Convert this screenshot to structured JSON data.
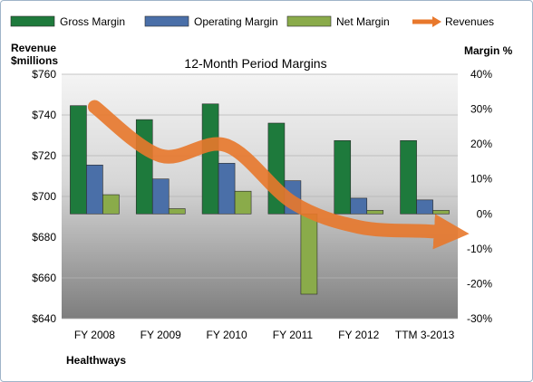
{
  "chart_data": {
    "type": "bar",
    "title": "12-Month Period Margins",
    "categories": [
      "FY 2008",
      "FY 2009",
      "FY 2010",
      "FY 2011",
      "FY 2012",
      "TTM 3-2013"
    ],
    "series": [
      {
        "name": "Gross Margin",
        "axis": "right",
        "color": "#1e7a3c",
        "values": [
          31,
          27,
          31.5,
          26,
          21,
          21
        ]
      },
      {
        "name": "Operating Margin",
        "axis": "right",
        "color": "#4a6fa8",
        "values": [
          14,
          10,
          14.5,
          9.5,
          4.5,
          4
        ]
      },
      {
        "name": "Net Margin",
        "axis": "right",
        "color": "#8aab4a",
        "values": [
          5.5,
          1.5,
          6.5,
          -23,
          1,
          1
        ]
      },
      {
        "name": "Revenues",
        "type": "line",
        "axis": "left",
        "color": "#e8782c",
        "values": [
          744,
          720,
          725,
          697,
          685,
          683
        ]
      }
    ],
    "left_axis": {
      "label_line1": "Revenue",
      "label_line2": "$millions",
      "min": 640,
      "max": 760,
      "ticks": [
        "$640",
        "$660",
        "$680",
        "$700",
        "$720",
        "$740",
        "$760"
      ]
    },
    "right_axis": {
      "label": "Margin %",
      "min": -30,
      "max": 40,
      "ticks": [
        "-30%",
        "-20%",
        "-10%",
        "0%",
        "10%",
        "20%",
        "30%",
        "40%"
      ]
    },
    "legend_position": "top",
    "grid": true,
    "source": "Healthways"
  }
}
